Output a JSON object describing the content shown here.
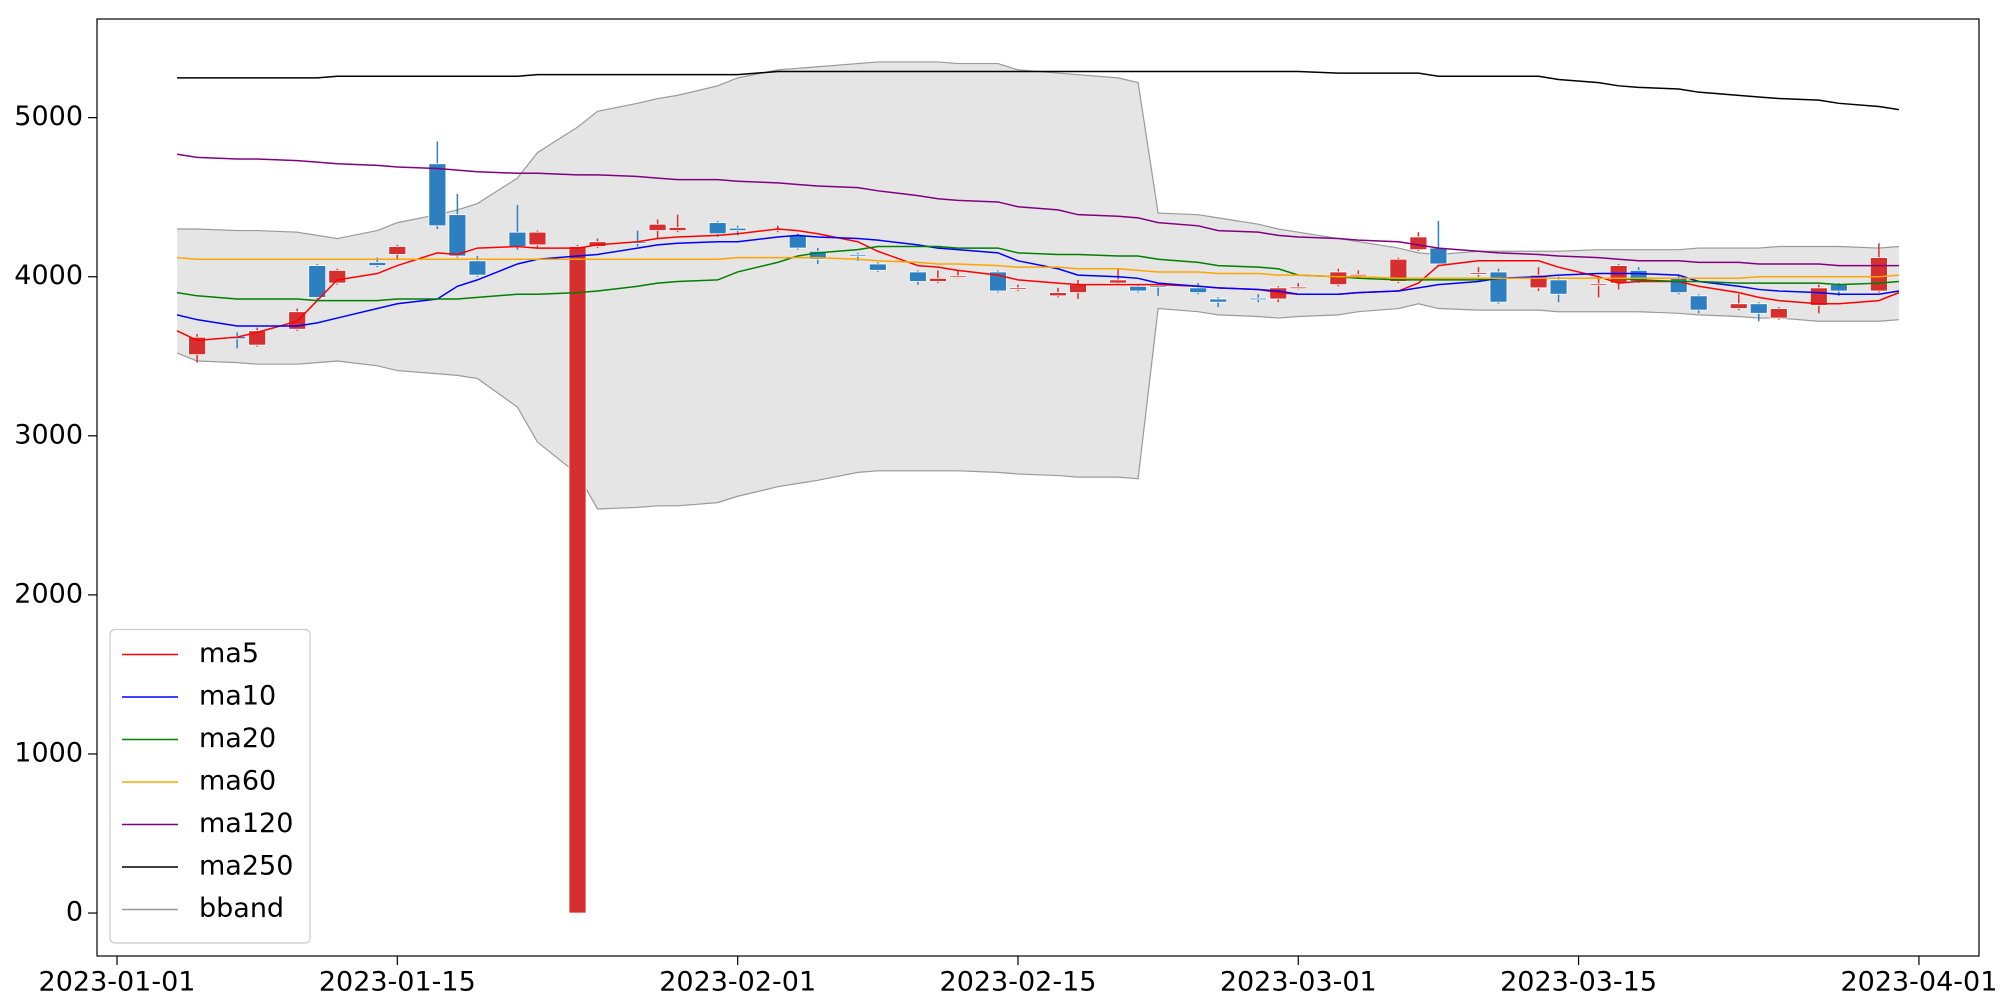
{
  "chart_data": {
    "type": "candlestick",
    "x": [
      "2023-01-04",
      "2023-01-05",
      "2023-01-07",
      "2023-01-08",
      "2023-01-10",
      "2023-01-11",
      "2023-01-12",
      "2023-01-14",
      "2023-01-15",
      "2023-01-17",
      "2023-01-18",
      "2023-01-19",
      "2023-01-21",
      "2023-01-22",
      "2023-01-24",
      "2023-01-25",
      "2023-01-27",
      "2023-01-28",
      "2023-01-29",
      "2023-01-31",
      "2023-02-01",
      "2023-02-03",
      "2023-02-04",
      "2023-02-05",
      "2023-02-07",
      "2023-02-08",
      "2023-02-10",
      "2023-02-11",
      "2023-02-12",
      "2023-02-14",
      "2023-02-15",
      "2023-02-17",
      "2023-02-18",
      "2023-02-20",
      "2023-02-21",
      "2023-02-22",
      "2023-02-24",
      "2023-02-25",
      "2023-02-27",
      "2023-02-28",
      "2023-03-01",
      "2023-03-03",
      "2023-03-04",
      "2023-03-06",
      "2023-03-07",
      "2023-03-08",
      "2023-03-10",
      "2023-03-11",
      "2023-03-13",
      "2023-03-14",
      "2023-03-16",
      "2023-03-17",
      "2023-03-18",
      "2023-03-20",
      "2023-03-21",
      "2023-03-23",
      "2023-03-24",
      "2023-03-25",
      "2023-03-27",
      "2023-03-28",
      "2023-03-30",
      "2023-03-31"
    ],
    "candles": {
      "up_color": "#d62f2f",
      "down_color": "#2e7fc0",
      "open": [
        null,
        3510,
        3625,
        3570,
        3670,
        4070,
        3960,
        4090,
        4140,
        4710,
        4390,
        4100,
        4280,
        4200,
        0,
        4190,
        4220,
        4290,
        4290,
        4340,
        4305,
        4290,
        4260,
        4160,
        4140,
        4080,
        4030,
        3970,
        3995,
        4030,
        3920,
        3880,
        3900,
        3960,
        3940,
        3945,
        3930,
        3860,
        3865,
        3860,
        3925,
        3950,
        4005,
        3970,
        4170,
        4180,
        4015,
        4030,
        3930,
        3980,
        3945,
        3960,
        4040,
        3990,
        3880,
        3800,
        3830,
        3740,
        3820,
        3950,
        3910,
        null
      ],
      "high": [
        null,
        3640,
        3650,
        3680,
        3800,
        4080,
        4050,
        4120,
        4200,
        4850,
        4520,
        4130,
        4450,
        4290,
        4200,
        4240,
        4290,
        4360,
        4390,
        4350,
        4320,
        4320,
        4270,
        4180,
        4150,
        4090,
        4040,
        4040,
        4040,
        4040,
        3950,
        3930,
        3980,
        4050,
        3950,
        3950,
        3960,
        3870,
        3890,
        3940,
        3960,
        4050,
        4040,
        4120,
        4280,
        4350,
        4060,
        4050,
        4060,
        4000,
        4000,
        4080,
        4060,
        4010,
        3890,
        3890,
        3840,
        3810,
        3950,
        3960,
        4210,
        null
      ],
      "low": [
        null,
        3460,
        3550,
        3560,
        3660,
        3850,
        3950,
        4060,
        4110,
        4300,
        4120,
        4000,
        4170,
        4180,
        0,
        4180,
        4190,
        4240,
        4280,
        4250,
        4260,
        4280,
        4170,
        4080,
        4100,
        4030,
        3950,
        3960,
        3990,
        3900,
        3910,
        3870,
        3860,
        3950,
        3900,
        3880,
        3890,
        3810,
        3840,
        3840,
        3920,
        3940,
        3990,
        3960,
        4160,
        4070,
        4000,
        3830,
        3910,
        3840,
        3870,
        3920,
        3960,
        3890,
        3770,
        3790,
        3720,
        3730,
        3770,
        3880,
        3900,
        null
      ],
      "close": [
        null,
        3620,
        3610,
        3660,
        3780,
        3870,
        4040,
        4070,
        4190,
        4320,
        4130,
        4010,
        4190,
        4280,
        4190,
        4220,
        4210,
        4330,
        4310,
        4270,
        4290,
        4300,
        4180,
        4110,
        4130,
        4040,
        3970,
        3990,
        4005,
        3910,
        3930,
        3900,
        3950,
        3980,
        3910,
        3935,
        3900,
        3840,
        3855,
        3930,
        3935,
        4030,
        4015,
        4110,
        4250,
        4080,
        4025,
        3840,
        4010,
        3890,
        3955,
        4070,
        3970,
        3900,
        3790,
        3830,
        3770,
        3800,
        3930,
        3910,
        4120,
        null
      ]
    },
    "series": [
      {
        "name": "ma5",
        "color": "#ff0000",
        "values": [
          3660,
          3600,
          3620,
          3650,
          3720,
          3850,
          3980,
          4020,
          4070,
          4150,
          4140,
          4180,
          4190,
          4180,
          4180,
          4200,
          4220,
          4240,
          4250,
          4260,
          4270,
          4300,
          4290,
          4270,
          4220,
          4160,
          4070,
          4060,
          4040,
          4010,
          3980,
          3960,
          3950,
          3950,
          3950,
          3950,
          3940,
          3930,
          3920,
          3900,
          3890,
          3890,
          3900,
          3910,
          3960,
          4070,
          4100,
          4100,
          4100,
          4060,
          4000,
          3960,
          3970,
          3970,
          3940,
          3900,
          3870,
          3850,
          3830,
          3830,
          3850,
          3900
        ]
      },
      {
        "name": "ma10",
        "color": "#0000ff",
        "values": [
          3760,
          3730,
          3690,
          3690,
          3690,
          3710,
          3740,
          3800,
          3830,
          3860,
          3940,
          3980,
          4080,
          4110,
          4130,
          4140,
          4180,
          4200,
          4210,
          4220,
          4220,
          4250,
          4260,
          4250,
          4240,
          4230,
          4200,
          4180,
          4170,
          4150,
          4100,
          4050,
          4010,
          4000,
          3990,
          3960,
          3940,
          3930,
          3920,
          3910,
          3890,
          3890,
          3900,
          3910,
          3930,
          3950,
          3970,
          3990,
          4000,
          4010,
          4020,
          4020,
          4020,
          4010,
          3970,
          3940,
          3920,
          3910,
          3900,
          3890,
          3890,
          3910
        ]
      },
      {
        "name": "ma20",
        "color": "#008000",
        "values": [
          3900,
          3880,
          3860,
          3860,
          3860,
          3850,
          3850,
          3850,
          3860,
          3860,
          3860,
          3870,
          3890,
          3890,
          3900,
          3910,
          3940,
          3960,
          3970,
          3980,
          4030,
          4090,
          4130,
          4150,
          4170,
          4190,
          4190,
          4190,
          4180,
          4180,
          4150,
          4140,
          4140,
          4130,
          4130,
          4110,
          4090,
          4070,
          4060,
          4050,
          4010,
          4000,
          3990,
          3980,
          3980,
          3980,
          3980,
          3990,
          3990,
          3990,
          3990,
          3990,
          3980,
          3970,
          3970,
          3960,
          3960,
          3960,
          3960,
          3950,
          3960,
          3970
        ]
      },
      {
        "name": "ma60",
        "color": "#ffa500",
        "values": [
          4120,
          4110,
          4110,
          4110,
          4110,
          4110,
          4110,
          4110,
          4110,
          4110,
          4110,
          4110,
          4110,
          4110,
          4110,
          4110,
          4110,
          4110,
          4110,
          4110,
          4120,
          4120,
          4120,
          4120,
          4110,
          4100,
          4090,
          4080,
          4080,
          4070,
          4060,
          4060,
          4050,
          4050,
          4040,
          4030,
          4030,
          4020,
          4020,
          4010,
          4010,
          4000,
          4000,
          3990,
          3990,
          3990,
          3990,
          3990,
          3990,
          3990,
          3990,
          3990,
          3990,
          3990,
          3990,
          3990,
          4000,
          4000,
          4000,
          4000,
          4000,
          4010
        ]
      },
      {
        "name": "ma120",
        "color": "#800080",
        "values": [
          4770,
          4750,
          4740,
          4740,
          4730,
          4720,
          4710,
          4700,
          4690,
          4680,
          4670,
          4660,
          4650,
          4650,
          4640,
          4640,
          4630,
          4620,
          4610,
          4610,
          4600,
          4590,
          4580,
          4570,
          4560,
          4540,
          4510,
          4490,
          4480,
          4470,
          4440,
          4420,
          4390,
          4380,
          4370,
          4340,
          4320,
          4290,
          4280,
          4260,
          4250,
          4240,
          4230,
          4220,
          4200,
          4180,
          4160,
          4150,
          4140,
          4130,
          4120,
          4110,
          4100,
          4100,
          4090,
          4090,
          4080,
          4080,
          4080,
          4070,
          4070,
          4070
        ]
      },
      {
        "name": "ma250",
        "color": "#000000",
        "values": [
          5250,
          5250,
          5250,
          5250,
          5250,
          5250,
          5260,
          5260,
          5260,
          5260,
          5260,
          5260,
          5260,
          5270,
          5270,
          5270,
          5270,
          5270,
          5270,
          5270,
          5270,
          5290,
          5290,
          5290,
          5290,
          5290,
          5290,
          5290,
          5290,
          5290,
          5290,
          5290,
          5290,
          5290,
          5290,
          5290,
          5290,
          5290,
          5290,
          5290,
          5290,
          5280,
          5280,
          5280,
          5280,
          5260,
          5260,
          5260,
          5260,
          5240,
          5220,
          5200,
          5190,
          5180,
          5160,
          5140,
          5130,
          5120,
          5110,
          5090,
          5070,
          5050
        ]
      }
    ],
    "band": {
      "name": "bband",
      "color": "#e5e5e5",
      "edge_color": "#9a9a9a",
      "upper": [
        4300,
        4300,
        4290,
        4290,
        4280,
        4260,
        4240,
        4290,
        4340,
        4390,
        4420,
        4460,
        4620,
        4780,
        4940,
        5040,
        5090,
        5120,
        5140,
        5200,
        5250,
        5300,
        5310,
        5320,
        5340,
        5350,
        5350,
        5350,
        5340,
        5340,
        5300,
        5280,
        5270,
        5250,
        5220,
        4400,
        4390,
        4370,
        4330,
        4300,
        4280,
        4240,
        4220,
        4180,
        4150,
        4140,
        4160,
        4160,
        4160,
        4160,
        4170,
        4170,
        4170,
        4170,
        4180,
        4180,
        4180,
        4190,
        4190,
        4190,
        4180,
        4190
      ],
      "lower": [
        3520,
        3470,
        3460,
        3450,
        3450,
        3460,
        3470,
        3440,
        3410,
        3390,
        3380,
        3360,
        3180,
        2960,
        2760,
        2540,
        2550,
        2560,
        2560,
        2580,
        2620,
        2680,
        2700,
        2720,
        2770,
        2780,
        2780,
        2780,
        2780,
        2770,
        2760,
        2750,
        2740,
        2740,
        2730,
        3800,
        3780,
        3760,
        3750,
        3740,
        3750,
        3760,
        3780,
        3800,
        3830,
        3800,
        3790,
        3790,
        3790,
        3780,
        3780,
        3780,
        3780,
        3770,
        3760,
        3750,
        3740,
        3740,
        3720,
        3720,
        3720,
        3730
      ]
    },
    "xlim": [
      "2022-12-31",
      "2023-04-04"
    ],
    "xticks": [
      "2023-01-01",
      "2023-01-15",
      "2023-02-01",
      "2023-02-15",
      "2023-03-01",
      "2023-03-15",
      "2023-04-01"
    ],
    "ylim": [
      -270,
      5620
    ],
    "yticks": [
      0,
      1000,
      2000,
      3000,
      4000,
      5000
    ],
    "grid": false,
    "legend": "lower left"
  }
}
